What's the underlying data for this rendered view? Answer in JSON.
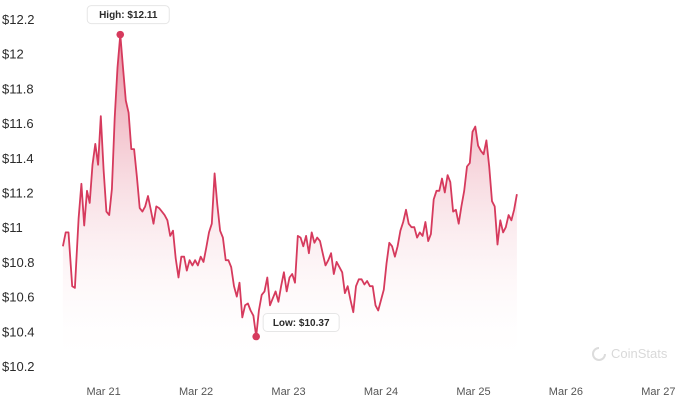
{
  "chart_data": {
    "type": "area",
    "title": "",
    "xlabel": "",
    "ylabel": "",
    "ylim": [
      10.2,
      12.2
    ],
    "yticks": [
      "$12.2",
      "$12",
      "$11.8",
      "$11.6",
      "$11.4",
      "$11.2",
      "$11",
      "$10.8",
      "$10.6",
      "$10.4",
      "$10.2"
    ],
    "ytick_values": [
      12.2,
      12.0,
      11.8,
      11.6,
      11.4,
      11.2,
      11.0,
      10.8,
      10.6,
      10.4,
      10.2
    ],
    "xticks": [
      "Mar 21",
      "Mar 22",
      "Mar 23",
      "Mar 24",
      "Mar 25",
      "Mar 26",
      "Mar 27"
    ],
    "xtick_positions": [
      1,
      2,
      3,
      4,
      5,
      6,
      7
    ],
    "xlim": [
      0.55,
      7.45
    ],
    "grid": false,
    "series": [
      {
        "color": "#d63a5d",
        "fill_top_color": "#e7899c",
        "points": [
          [
            0.56,
            10.89
          ],
          [
            0.59,
            10.97
          ],
          [
            0.62,
            10.97
          ],
          [
            0.66,
            10.66
          ],
          [
            0.69,
            10.65
          ],
          [
            0.73,
            11.05
          ],
          [
            0.76,
            11.25
          ],
          [
            0.79,
            11.01
          ],
          [
            0.82,
            11.21
          ],
          [
            0.85,
            11.14
          ],
          [
            0.88,
            11.36
          ],
          [
            0.91,
            11.48
          ],
          [
            0.94,
            11.36
          ],
          [
            0.97,
            11.64
          ],
          [
            1.0,
            11.33
          ],
          [
            1.03,
            11.09
          ],
          [
            1.06,
            11.07
          ],
          [
            1.09,
            11.22
          ],
          [
            1.12,
            11.63
          ],
          [
            1.15,
            11.92
          ],
          [
            1.18,
            12.11
          ],
          [
            1.21,
            11.92
          ],
          [
            1.24,
            11.73
          ],
          [
            1.27,
            11.66
          ],
          [
            1.3,
            11.45
          ],
          [
            1.33,
            11.45
          ],
          [
            1.36,
            11.29
          ],
          [
            1.39,
            11.11
          ],
          [
            1.42,
            11.09
          ],
          [
            1.45,
            11.12
          ],
          [
            1.48,
            11.18
          ],
          [
            1.51,
            11.1
          ],
          [
            1.54,
            11.02
          ],
          [
            1.57,
            11.12
          ],
          [
            1.6,
            11.11
          ],
          [
            1.63,
            11.09
          ],
          [
            1.66,
            11.07
          ],
          [
            1.69,
            11.04
          ],
          [
            1.72,
            10.95
          ],
          [
            1.75,
            10.98
          ],
          [
            1.78,
            10.82
          ],
          [
            1.81,
            10.71
          ],
          [
            1.84,
            10.83
          ],
          [
            1.87,
            10.83
          ],
          [
            1.9,
            10.75
          ],
          [
            1.93,
            10.81
          ],
          [
            1.96,
            10.78
          ],
          [
            1.99,
            10.81
          ],
          [
            2.02,
            10.78
          ],
          [
            2.05,
            10.83
          ],
          [
            2.08,
            10.8
          ],
          [
            2.11,
            10.88
          ],
          [
            2.14,
            10.97
          ],
          [
            2.17,
            11.02
          ],
          [
            2.2,
            11.31
          ],
          [
            2.23,
            11.13
          ],
          [
            2.26,
            10.98
          ],
          [
            2.29,
            10.94
          ],
          [
            2.32,
            10.81
          ],
          [
            2.35,
            10.81
          ],
          [
            2.38,
            10.77
          ],
          [
            2.41,
            10.66
          ],
          [
            2.44,
            10.6
          ],
          [
            2.47,
            10.68
          ],
          [
            2.5,
            10.48
          ],
          [
            2.53,
            10.55
          ],
          [
            2.56,
            10.56
          ],
          [
            2.59,
            10.52
          ],
          [
            2.62,
            10.49
          ],
          [
            2.65,
            10.37
          ],
          [
            2.68,
            10.52
          ],
          [
            2.71,
            10.61
          ],
          [
            2.74,
            10.63
          ],
          [
            2.77,
            10.71
          ],
          [
            2.8,
            10.55
          ],
          [
            2.83,
            10.59
          ],
          [
            2.86,
            10.63
          ],
          [
            2.89,
            10.57
          ],
          [
            2.92,
            10.66
          ],
          [
            2.95,
            10.74
          ],
          [
            2.98,
            10.63
          ],
          [
            3.01,
            10.71
          ],
          [
            3.04,
            10.73
          ],
          [
            3.07,
            10.68
          ],
          [
            3.1,
            10.95
          ],
          [
            3.13,
            10.94
          ],
          [
            3.16,
            10.89
          ],
          [
            3.19,
            10.95
          ],
          [
            3.22,
            10.85
          ],
          [
            3.25,
            10.97
          ],
          [
            3.28,
            10.91
          ],
          [
            3.31,
            10.94
          ],
          [
            3.34,
            10.92
          ],
          [
            3.37,
            10.85
          ],
          [
            3.4,
            10.78
          ],
          [
            3.43,
            10.81
          ],
          [
            3.46,
            10.85
          ],
          [
            3.49,
            10.73
          ],
          [
            3.52,
            10.8
          ],
          [
            3.55,
            10.77
          ],
          [
            3.58,
            10.74
          ],
          [
            3.61,
            10.62
          ],
          [
            3.64,
            10.66
          ],
          [
            3.67,
            10.58
          ],
          [
            3.7,
            10.51
          ],
          [
            3.73,
            10.66
          ],
          [
            3.76,
            10.7
          ],
          [
            3.79,
            10.7
          ],
          [
            3.82,
            10.67
          ],
          [
            3.85,
            10.69
          ],
          [
            3.88,
            10.66
          ],
          [
            3.91,
            10.66
          ],
          [
            3.94,
            10.55
          ],
          [
            3.97,
            10.52
          ],
          [
            4.0,
            10.58
          ],
          [
            4.03,
            10.64
          ],
          [
            4.06,
            10.79
          ],
          [
            4.09,
            10.91
          ],
          [
            4.12,
            10.89
          ],
          [
            4.15,
            10.83
          ],
          [
            4.18,
            10.89
          ],
          [
            4.21,
            10.98
          ],
          [
            4.24,
            11.03
          ],
          [
            4.27,
            11.1
          ],
          [
            4.3,
            11.02
          ],
          [
            4.33,
            11.0
          ],
          [
            4.36,
            11.0
          ],
          [
            4.39,
            10.94
          ],
          [
            4.42,
            10.97
          ],
          [
            4.45,
            10.95
          ],
          [
            4.48,
            11.03
          ],
          [
            4.51,
            10.92
          ],
          [
            4.54,
            10.96
          ],
          [
            4.57,
            11.16
          ],
          [
            4.6,
            11.21
          ],
          [
            4.63,
            11.21
          ],
          [
            4.66,
            11.28
          ],
          [
            4.69,
            11.2
          ],
          [
            4.72,
            11.3
          ],
          [
            4.75,
            11.26
          ],
          [
            4.78,
            11.09
          ],
          [
            4.81,
            11.1
          ],
          [
            4.84,
            11.02
          ],
          [
            4.87,
            11.12
          ],
          [
            4.9,
            11.21
          ],
          [
            4.93,
            11.35
          ],
          [
            4.96,
            11.37
          ],
          [
            4.99,
            11.55
          ],
          [
            5.02,
            11.58
          ],
          [
            5.05,
            11.47
          ],
          [
            5.08,
            11.44
          ],
          [
            5.11,
            11.42
          ],
          [
            5.14,
            11.5
          ],
          [
            5.17,
            11.35
          ],
          [
            5.2,
            11.15
          ],
          [
            5.23,
            11.12
          ],
          [
            5.26,
            10.9
          ],
          [
            5.29,
            11.04
          ],
          [
            5.32,
            10.97
          ],
          [
            5.35,
            11.0
          ],
          [
            5.38,
            11.07
          ],
          [
            5.41,
            11.04
          ],
          [
            5.44,
            11.1
          ],
          [
            5.47,
            11.19
          ]
        ]
      }
    ],
    "annotations": [
      {
        "label": "High: $12.11",
        "x": 1.18,
        "y": 12.11,
        "position": "above"
      },
      {
        "label": "Low: $10.37",
        "x": 2.65,
        "y": 10.37,
        "position": "right"
      }
    ],
    "watermark": "CoinStats"
  }
}
